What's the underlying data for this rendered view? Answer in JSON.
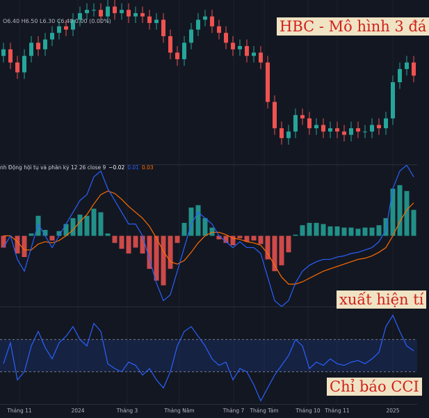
{
  "chart_data": [
    {
      "type": "candlestick",
      "legend": "O6.40 H6.50 L6.30 C6.40 0.00 (0.00%)",
      "annotation": "HBC - Mô hình 3 đá",
      "up_color": "#26a69a",
      "down_color": "#ef5350",
      "xlim": [
        -0.5,
        59.5
      ],
      "ylim": [
        5.5,
        10.5
      ],
      "open": [
        8.8,
        9.0,
        8.6,
        8.3,
        8.8,
        9.2,
        9.0,
        9.3,
        9.5,
        9.7,
        9.6,
        9.9,
        10.1,
        10.2,
        10.2,
        10.0,
        10.3,
        10.1,
        10.2,
        10.0,
        10.1,
        10.0,
        9.8,
        9.9,
        9.4,
        8.9,
        8.7,
        9.2,
        9.6,
        9.9,
        10.0,
        9.7,
        9.5,
        9.2,
        9.0,
        9.1,
        8.8,
        8.9,
        8.6,
        7.4,
        6.6,
        6.3,
        6.5,
        7.0,
        6.9,
        6.6,
        6.7,
        6.5,
        6.6,
        6.5,
        6.4,
        6.6,
        6.5,
        6.5,
        6.7,
        6.6,
        6.9,
        8.0,
        8.4,
        8.6
      ],
      "high": [
        9.2,
        9.2,
        8.8,
        9.0,
        9.4,
        9.4,
        9.5,
        9.7,
        9.9,
        9.9,
        10.1,
        10.3,
        10.4,
        10.4,
        10.4,
        10.5,
        10.5,
        10.4,
        10.4,
        10.3,
        10.3,
        10.2,
        10.1,
        10.1,
        9.6,
        9.1,
        9.4,
        9.8,
        10.1,
        10.2,
        10.2,
        9.9,
        9.7,
        9.4,
        9.3,
        9.3,
        9.1,
        9.1,
        8.8,
        7.6,
        6.8,
        6.7,
        7.2,
        7.2,
        7.1,
        6.9,
        6.9,
        6.8,
        6.8,
        6.7,
        6.8,
        6.8,
        6.7,
        6.9,
        6.9,
        7.1,
        8.2,
        8.6,
        8.8,
        8.8
      ],
      "low": [
        8.6,
        8.4,
        8.1,
        8.1,
        8.6,
        8.8,
        8.8,
        9.1,
        9.3,
        9.4,
        9.4,
        9.7,
        9.9,
        10.0,
        9.8,
        9.8,
        9.9,
        9.9,
        9.8,
        9.8,
        9.8,
        9.6,
        9.6,
        9.2,
        8.7,
        8.5,
        8.5,
        9.0,
        9.4,
        9.7,
        9.5,
        9.3,
        9.0,
        8.8,
        8.8,
        8.6,
        8.6,
        8.4,
        7.2,
        6.4,
        6.1,
        6.1,
        6.3,
        6.7,
        6.4,
        6.4,
        6.3,
        6.3,
        6.3,
        6.2,
        6.2,
        6.3,
        6.3,
        6.3,
        6.4,
        6.4,
        6.7,
        7.8,
        8.2,
        8.0
      ],
      "close": [
        9.0,
        8.6,
        8.3,
        8.8,
        9.2,
        9.0,
        9.3,
        9.5,
        9.7,
        9.6,
        9.9,
        10.1,
        10.2,
        10.2,
        10.0,
        10.3,
        10.1,
        10.2,
        10.0,
        10.1,
        10.0,
        9.8,
        9.9,
        9.4,
        8.9,
        8.7,
        9.2,
        9.6,
        9.9,
        10.0,
        9.7,
        9.5,
        9.2,
        9.0,
        9.1,
        8.8,
        8.9,
        8.6,
        7.4,
        6.6,
        6.3,
        6.5,
        7.0,
        6.9,
        6.6,
        6.7,
        6.5,
        6.6,
        6.5,
        6.4,
        6.6,
        6.5,
        6.5,
        6.7,
        6.6,
        6.9,
        8.0,
        8.4,
        8.6,
        8.2
      ]
    },
    {
      "type": "macd",
      "legend": "nh Động hội tụ và phân kỳ 12 26 close 9",
      "legend_values": [
        {
          "value": -0.02,
          "label": "−0.02"
        },
        0.01,
        0.03
      ],
      "legend_colors": [
        "#ffffff",
        "#2962ff",
        "#ff6d00"
      ],
      "annotation": "xuất hiện tí",
      "xlim": [
        -0.5,
        59.5
      ],
      "ylim": [
        -0.6,
        0.6
      ],
      "macd_color": "#2962ff",
      "signal_color": "#ff6d00",
      "positive_color": "#26a69a",
      "negative_color": "#ef5350",
      "macd": [
        -0.1,
        0.0,
        -0.2,
        -0.3,
        -0.1,
        0.1,
        0.0,
        -0.1,
        0.0,
        0.1,
        0.2,
        0.3,
        0.35,
        0.5,
        0.55,
        0.4,
        0.3,
        0.2,
        0.1,
        0.1,
        0.0,
        -0.2,
        -0.4,
        -0.55,
        -0.5,
        -0.3,
        -0.1,
        0.1,
        0.2,
        0.15,
        0.1,
        0.0,
        -0.05,
        -0.1,
        -0.05,
        -0.1,
        -0.1,
        -0.15,
        -0.35,
        -0.55,
        -0.6,
        -0.55,
        -0.4,
        -0.3,
        -0.25,
        -0.22,
        -0.2,
        -0.2,
        -0.18,
        -0.17,
        -0.15,
        -0.14,
        -0.12,
        -0.1,
        -0.05,
        0.05,
        0.4,
        0.55,
        0.6,
        0.5
      ],
      "signal": [
        0.0,
        0.0,
        -0.05,
        -0.12,
        -0.12,
        -0.07,
        -0.05,
        -0.06,
        -0.04,
        0.0,
        0.05,
        0.12,
        0.18,
        0.27,
        0.35,
        0.38,
        0.36,
        0.31,
        0.25,
        0.2,
        0.15,
        0.08,
        -0.02,
        -0.13,
        -0.22,
        -0.24,
        -0.21,
        -0.14,
        -0.06,
        0.0,
        0.03,
        0.03,
        0.01,
        -0.02,
        -0.03,
        -0.05,
        -0.06,
        -0.08,
        -0.15,
        -0.25,
        -0.35,
        -0.41,
        -0.41,
        -0.39,
        -0.36,
        -0.33,
        -0.3,
        -0.28,
        -0.26,
        -0.24,
        -0.22,
        -0.2,
        -0.19,
        -0.17,
        -0.14,
        -0.1,
        0.0,
        0.12,
        0.22,
        0.28
      ],
      "histogram": [
        -0.1,
        0.0,
        -0.15,
        -0.18,
        0.02,
        0.17,
        0.05,
        -0.04,
        0.04,
        0.1,
        0.15,
        0.18,
        0.17,
        0.23,
        0.2,
        0.02,
        -0.06,
        -0.11,
        -0.15,
        -0.1,
        -0.15,
        -0.28,
        -0.38,
        -0.42,
        -0.28,
        -0.06,
        0.11,
        0.24,
        0.26,
        0.15,
        0.07,
        -0.03,
        -0.06,
        -0.08,
        -0.02,
        -0.05,
        -0.04,
        -0.07,
        -0.2,
        -0.3,
        -0.25,
        -0.14,
        0.01,
        0.09,
        0.11,
        0.11,
        0.1,
        0.08,
        0.08,
        0.07,
        0.07,
        0.06,
        0.07,
        0.07,
        0.09,
        0.15,
        0.4,
        0.43,
        0.38,
        0.22
      ]
    },
    {
      "type": "cci",
      "annotation": "Chỉ báo CCI",
      "xlim": [
        -0.5,
        59.5
      ],
      "ylim": [
        -300,
        300
      ],
      "band": [
        -100,
        100
      ],
      "color": "#2962ff",
      "band_color": "#2962ff",
      "values": [
        -50,
        80,
        -150,
        -100,
        60,
        150,
        50,
        -20,
        80,
        120,
        180,
        100,
        60,
        200,
        150,
        -50,
        -80,
        -100,
        -40,
        -60,
        -120,
        -80,
        -150,
        -200,
        -100,
        60,
        150,
        180,
        120,
        60,
        -20,
        -60,
        -40,
        -150,
        -80,
        -100,
        -180,
        -280,
        -200,
        -120,
        -60,
        0,
        100,
        60,
        -80,
        -40,
        -60,
        -20,
        -50,
        -60,
        -40,
        -30,
        -50,
        -20,
        20,
        180,
        250,
        150,
        60,
        30
      ],
      "xticks": [
        {
          "value": 2.3,
          "label": "Tháng 11"
        },
        {
          "value": 10.7,
          "label": "2024"
        },
        {
          "value": 17.8,
          "label": "Tháng 3"
        },
        {
          "value": 25.3,
          "label": "Tháng Năm"
        },
        {
          "value": 33.1,
          "label": "Tháng 7"
        },
        {
          "value": 37.5,
          "label": "Tháng Tám"
        },
        {
          "value": 43.8,
          "label": "Tháng 10"
        },
        {
          "value": 48,
          "label": "Tháng 11"
        },
        {
          "value": 56,
          "label": "2025"
        }
      ]
    }
  ]
}
